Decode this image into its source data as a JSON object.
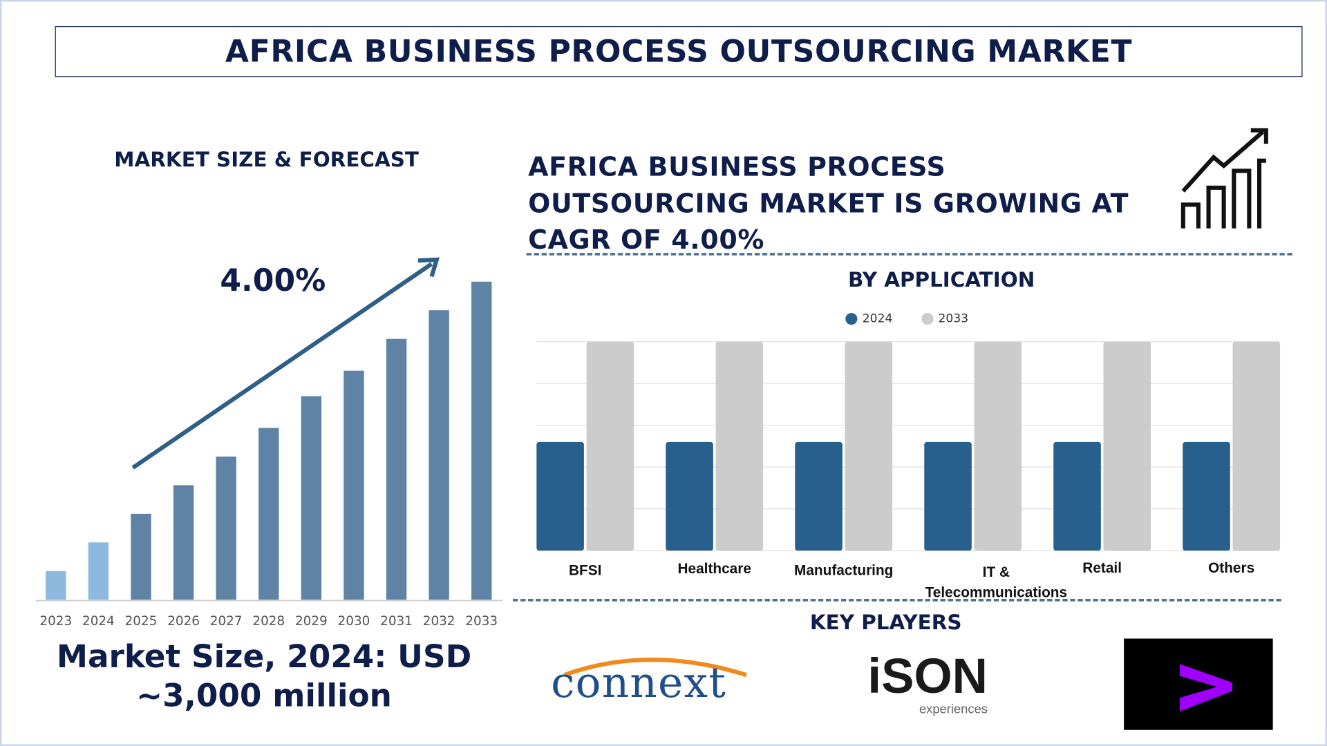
{
  "title": "AFRICA BUSINESS PROCESS OUTSOURCING MARKET",
  "left_panel": {
    "heading": "MARKET SIZE & FORECAST",
    "cagr_label": "4.00%",
    "market_size_line1": "Market Size, 2024: USD",
    "market_size_line2": "~3,000 million"
  },
  "headline": "AFRICA BUSINESS PROCESS OUTSOURCING MARKET IS GROWING AT CAGR OF 4.00%",
  "key_players_heading": "KEY PLAYERS",
  "key_players": [
    "connext",
    "iSON experiences",
    "Accenture"
  ],
  "colors": {
    "navy": "#0f1d4a",
    "bar_light": "#8db8df",
    "bar": "#5f83a4",
    "series_2024": "#27608d",
    "series_2033": "#cccccc",
    "accent_purple": "#a100ff"
  },
  "chart_data": [
    {
      "type": "bar",
      "categories": [
        "2023",
        "2024",
        "2025",
        "2026",
        "2027",
        "2028",
        "2029",
        "2030",
        "2031",
        "2032",
        "2033"
      ],
      "values": [
        9,
        18,
        27,
        36,
        45,
        54,
        64,
        72,
        82,
        91,
        100
      ],
      "title": "",
      "xlabel": "",
      "ylabel": "",
      "axis": "none",
      "annotation": "4.00%",
      "grid": false
    },
    {
      "type": "bar",
      "title": "BY APPLICATION",
      "categories": [
        "BFSI",
        "Healthcare",
        "Manufacturing",
        "IT & Telecommunications",
        "Retail",
        "Others"
      ],
      "series": [
        {
          "name": "2024",
          "values": [
            2.6,
            2.6,
            2.6,
            2.6,
            2.6,
            2.6
          ]
        },
        {
          "name": "2033",
          "values": [
            5,
            5,
            5,
            5,
            5,
            5
          ]
        }
      ],
      "ylim": [
        0,
        5
      ],
      "grid": true,
      "legend": "top-center"
    }
  ]
}
